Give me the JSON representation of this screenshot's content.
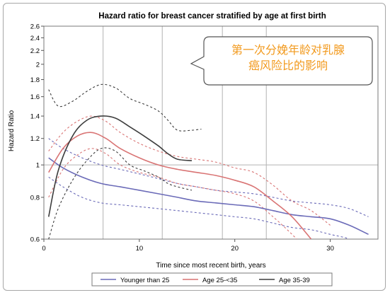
{
  "chart_data": {
    "type": "line",
    "title": "Hazard ratio for breast cancer stratified by age at first birth",
    "xlabel": "Time since most recent birth, years",
    "ylabel": "Hazard Ratio",
    "xlim": [
      0,
      35
    ],
    "ylim": [
      0.6,
      2.6
    ],
    "y_scale": "log",
    "x_ticks": [
      0,
      10,
      20,
      30
    ],
    "y_ticks": [
      0.6,
      0.8,
      1,
      1.2,
      1.4,
      1.6,
      1.8,
      2,
      2.2,
      2.4,
      2.6
    ],
    "x_gridlines": [
      6.2,
      12.4,
      18.7,
      23.3
    ],
    "y_reference": 1,
    "grid": "vertical",
    "legend_position": "bottom",
    "series": [
      {
        "name": "Younger than 25",
        "color": "#6b6bb8",
        "x": [
          0.5,
          2,
          4,
          6,
          8,
          10,
          12,
          14,
          16,
          18,
          20,
          22,
          24,
          26,
          28,
          30,
          32,
          34
        ],
        "y": [
          1.05,
          0.98,
          0.92,
          0.88,
          0.86,
          0.84,
          0.82,
          0.8,
          0.78,
          0.77,
          0.76,
          0.75,
          0.73,
          0.71,
          0.7,
          0.69,
          0.66,
          0.62
        ],
        "ci_lower": {
          "x": [
            0.5,
            2,
            4,
            6,
            8,
            10,
            12,
            14,
            16,
            18,
            20,
            22,
            24,
            26,
            28,
            30,
            32,
            34
          ],
          "y": [
            0.92,
            0.86,
            0.8,
            0.77,
            0.76,
            0.75,
            0.74,
            0.73,
            0.72,
            0.71,
            0.7,
            0.69,
            0.67,
            0.65,
            0.64,
            0.62,
            0.6,
            0.56
          ]
        },
        "ci_upper": {
          "x": [
            0.5,
            2,
            4,
            6,
            8,
            10,
            12,
            14,
            16,
            18,
            20,
            22,
            24,
            26,
            28,
            30,
            32,
            34
          ],
          "y": [
            1.2,
            1.12,
            1.05,
            1.0,
            0.97,
            0.94,
            0.91,
            0.88,
            0.86,
            0.84,
            0.83,
            0.82,
            0.8,
            0.78,
            0.77,
            0.76,
            0.74,
            0.7
          ]
        }
      },
      {
        "name": "Age 25-<35",
        "color": "#d97474",
        "x": [
          0.5,
          2,
          3.5,
          5,
          6.5,
          8,
          10,
          12,
          14,
          16,
          18,
          20,
          22,
          24,
          26,
          28
        ],
        "y": [
          0.95,
          1.12,
          1.22,
          1.25,
          1.2,
          1.12,
          1.05,
          1.0,
          0.97,
          0.95,
          0.93,
          0.9,
          0.86,
          0.78,
          0.7,
          0.6
        ],
        "ci_lower": {
          "x": [
            0.5,
            2,
            3.5,
            5,
            6.5,
            8,
            10,
            12,
            14,
            16,
            18,
            20,
            22,
            24,
            26,
            28
          ],
          "y": [
            0.8,
            0.97,
            1.07,
            1.12,
            1.08,
            1.0,
            0.95,
            0.92,
            0.88,
            0.86,
            0.84,
            0.82,
            0.78,
            0.7,
            0.62,
            0.54
          ]
        },
        "ci_upper": {
          "x": [
            0.5,
            2,
            3.5,
            5,
            6.5,
            8,
            10,
            12,
            14,
            16,
            18,
            20,
            22,
            24,
            26,
            28,
            30
          ],
          "y": [
            1.1,
            1.25,
            1.35,
            1.4,
            1.35,
            1.25,
            1.16,
            1.1,
            1.06,
            1.04,
            1.02,
            0.98,
            0.95,
            0.87,
            0.78,
            0.73,
            0.66
          ]
        }
      },
      {
        "name": "Age 35-39",
        "color": "#3d3d3d",
        "x": [
          0.5,
          1.5,
          3,
          4.5,
          6,
          7.5,
          9,
          10.5,
          12,
          13,
          14,
          15.5
        ],
        "y": [
          0.7,
          0.96,
          1.22,
          1.36,
          1.4,
          1.38,
          1.3,
          1.22,
          1.14,
          1.08,
          1.04,
          1.03
        ],
        "ci_lower": {
          "x": [
            0.5,
            1.5,
            3,
            4.5,
            6,
            7.5,
            9,
            10.5,
            12,
            13,
            14,
            15.5
          ],
          "y": [
            0.6,
            0.74,
            0.9,
            1.03,
            1.12,
            1.1,
            1.0,
            0.96,
            0.92,
            0.88,
            0.86,
            0.84
          ]
        },
        "ci_upper": {
          "x": [
            0.5,
            1.5,
            3,
            4.5,
            6,
            7.5,
            9,
            10.5,
            12,
            13,
            14,
            15.5,
            16.5
          ],
          "y": [
            1.68,
            1.5,
            1.55,
            1.66,
            1.74,
            1.7,
            1.58,
            1.52,
            1.45,
            1.36,
            1.27,
            1.27,
            1.28
          ]
        }
      }
    ]
  },
  "callout": {
    "text_line1": "第一次分娩年龄对乳腺",
    "text_line2": "癌风险比的影响"
  }
}
